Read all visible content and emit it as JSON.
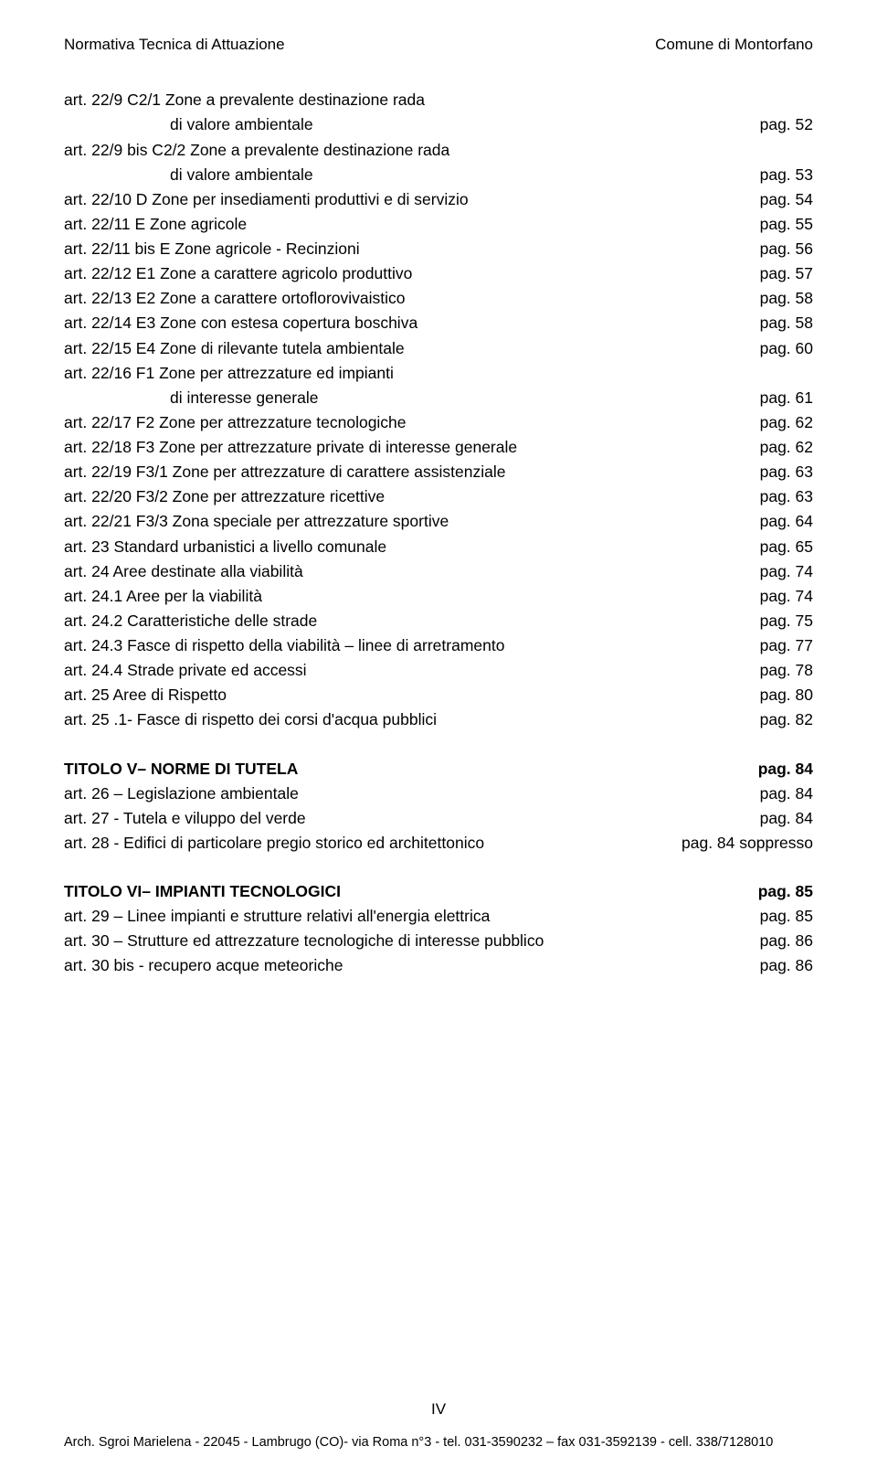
{
  "header": {
    "left": "Normativa Tecnica di Attuazione",
    "right": "Comune di Montorfano"
  },
  "lines": [
    {
      "label": "art. 22/9   C2/1 Zone a prevalente destinazione rada"
    },
    {
      "label": "di valore ambientale",
      "indent": true,
      "page": "pag.  52"
    },
    {
      "label": "art. 22/9 bis  C2/2 Zone a prevalente destinazione rada"
    },
    {
      "label": "di valore ambientale",
      "indent": true,
      "page": "pag.  53"
    },
    {
      "label": "art. 22/10  D Zone per insediamenti produttivi e di servizio",
      "page": "pag.  54"
    },
    {
      "label": "art. 22/11  E Zone agricole",
      "page": "pag.  55"
    },
    {
      "label": "art. 22/11 bis  E Zone agricole  - Recinzioni",
      "page": "pag.  56"
    },
    {
      "label": "art. 22/12  E1  Zone  a carattere agricolo produttivo",
      "page": "pag.  57"
    },
    {
      "label": "art. 22/13  E2  Zone  a carattere ortoflorovivaistico",
      "page": "pag.  58"
    },
    {
      "label": "art. 22/14  E3  Zone  con estesa copertura boschiva",
      "page": "pag.  58"
    },
    {
      "label": "art. 22/15  E4  Zone  di rilevante tutela ambientale",
      "page": "pag.  60"
    },
    {
      "label": "art. 22/16  F1  Zone  per attrezzature ed impianti"
    },
    {
      "label": "di interesse generale",
      "indent": true,
      "page": "pag.  61"
    },
    {
      "label": "art. 22/17  F2  Zone  per attrezzature tecnologiche",
      "page": "pag.  62"
    },
    {
      "label": "art. 22/18  F3  Zone  per attrezzature private di interesse generale",
      "page": "pag.  62"
    },
    {
      "label": "art. 22/19  F3/1  Zone  per attrezzature di carattere assistenziale",
      "page": "pag.  63"
    },
    {
      "label": "art. 22/20  F3/2  Zone  per attrezzature ricettive",
      "page": "pag.  63"
    },
    {
      "label": "art. 22/21  F3/3  Zona speciale per attrezzature sportive",
      "page": "pag.  64"
    },
    {
      "label": "art. 23   Standard urbanistici a livello comunale",
      "page": "pag.  65"
    },
    {
      "label": "art. 24   Aree destinate alla viabilità",
      "page": "pag.  74"
    },
    {
      "label": "art. 24.1   Aree per la viabilità",
      "page": "pag.  74"
    },
    {
      "label": "art. 24.2   Caratteristiche delle strade",
      "page": "pag.  75"
    },
    {
      "label": "art. 24.3   Fasce di rispetto della viabilità – linee di arretramento",
      "page": "pag.  77"
    },
    {
      "label": "art. 24.4   Strade private ed accessi",
      "page": "pag.  78"
    },
    {
      "label": "art. 25   Aree di Rispetto",
      "page": "pag.  80"
    },
    {
      "label": "art. 25 .1- Fasce di rispetto dei corsi d'acqua pubblici",
      "page": "pag.  82"
    },
    {
      "label": "TITOLO V– NORME DI TUTELA",
      "page": "pag.  84",
      "bold": true,
      "gap": true
    },
    {
      "label": "art. 26 – Legislazione ambientale",
      "page": "pag.  84"
    },
    {
      "label": "art. 27  - Tutela e viluppo del verde",
      "page": "pag.  84"
    },
    {
      "label": "art. 28  - Edifici di particolare pregio storico ed architettonico",
      "page": "pag.  84  soppresso"
    },
    {
      "label": "TITOLO VI– IMPIANTI TECNOLOGICI",
      "page": "pag.  85",
      "bold": true,
      "gap": true
    },
    {
      "label": "art. 29 – Linee impianti e strutture relativi all'energia elettrica",
      "page": "pag.  85"
    },
    {
      "label": "art. 30 – Strutture ed attrezzature tecnologiche di interesse pubblico",
      "page": "pag.  86"
    },
    {
      "label": "art. 30 bis  - recupero acque meteoriche",
      "page": "pag.  86"
    }
  ],
  "roman": "IV",
  "footer": "Arch. Sgroi Marielena - 22045 - Lambrugo (CO)- via Roma n°3 - tel.  031-3590232 – fax 031-3592139 -  cell. 338/7128010"
}
